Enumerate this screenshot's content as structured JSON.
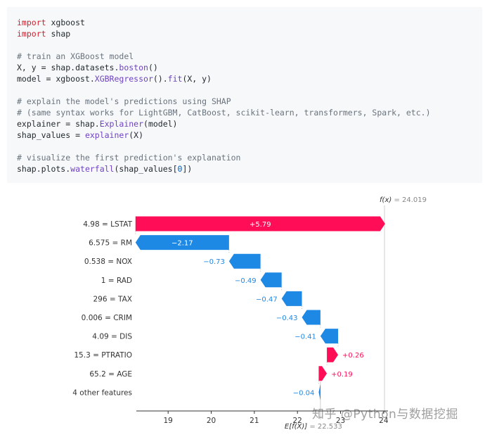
{
  "code": {
    "lines": [
      [
        {
          "t": "import",
          "c": "kw"
        },
        {
          "t": " xgboost"
        }
      ],
      [
        {
          "t": "import",
          "c": "kw"
        },
        {
          "t": " shap"
        }
      ],
      [],
      [
        {
          "t": "# train an XGBoost model",
          "c": "cm"
        }
      ],
      [
        {
          "t": "X, y = shap.datasets."
        },
        {
          "t": "boston",
          "c": "fn"
        },
        {
          "t": "()"
        }
      ],
      [
        {
          "t": "model = xgboost."
        },
        {
          "t": "XGBRegressor",
          "c": "fn"
        },
        {
          "t": "()."
        },
        {
          "t": "fit",
          "c": "fn"
        },
        {
          "t": "(X, y)"
        }
      ],
      [],
      [
        {
          "t": "# explain the model's predictions using SHAP",
          "c": "cm"
        }
      ],
      [
        {
          "t": "# (same syntax works for LightGBM, CatBoost, scikit-learn, transformers, Spark, etc.)",
          "c": "cm"
        }
      ],
      [
        {
          "t": "explainer = shap."
        },
        {
          "t": "Explainer",
          "c": "fn"
        },
        {
          "t": "(model)"
        }
      ],
      [
        {
          "t": "shap_values = "
        },
        {
          "t": "explainer",
          "c": "fn"
        },
        {
          "t": "(X)"
        }
      ],
      [],
      [
        {
          "t": "# visualize the first prediction's explanation",
          "c": "cm"
        }
      ],
      [
        {
          "t": "shap.plots."
        },
        {
          "t": "waterfall",
          "c": "fn"
        },
        {
          "t": "(shap_values["
        },
        {
          "t": "0",
          "c": "num"
        },
        {
          "t": "])"
        }
      ]
    ]
  },
  "chart_data": {
    "type": "bar",
    "subtype": "waterfall",
    "base_value": 22.533,
    "fx_value": 24.019,
    "fx_label_prefix": "f(x)",
    "fx_label": "= 24.019",
    "ex_label_prefix": "E[f(X)]",
    "ex_label": "= 22.533",
    "xlim": [
      18.1,
      24.1
    ],
    "xticks": [
      19,
      20,
      21,
      22,
      23,
      24
    ],
    "features": [
      {
        "label": "4.98 = LSTAT",
        "value": 5.79,
        "text": "+5.79"
      },
      {
        "label": "6.575 = RM",
        "value": -2.17,
        "text": "−2.17"
      },
      {
        "label": "0.538 = NOX",
        "value": -0.73,
        "text": "−0.73"
      },
      {
        "label": "1 = RAD",
        "value": -0.49,
        "text": "−0.49"
      },
      {
        "label": "296 = TAX",
        "value": -0.47,
        "text": "−0.47"
      },
      {
        "label": "0.006 = CRIM",
        "value": -0.43,
        "text": "−0.43"
      },
      {
        "label": "4.09 = DIS",
        "value": -0.41,
        "text": "−0.41"
      },
      {
        "label": "15.3 = PTRATIO",
        "value": 0.26,
        "text": "+0.26"
      },
      {
        "label": "65.2 = AGE",
        "value": 0.19,
        "text": "+0.19"
      },
      {
        "label": "4 other features",
        "value": -0.04,
        "text": "−0.04"
      }
    ],
    "colors": {
      "positive": "#ff0d57",
      "negative": "#1e88e5"
    }
  },
  "watermark": "知乎 @Python与数据挖掘"
}
